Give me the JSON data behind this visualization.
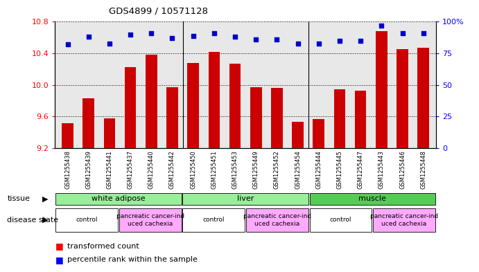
{
  "title": "GDS4899 / 10571128",
  "samples": [
    "GSM1255438",
    "GSM1255439",
    "GSM1255441",
    "GSM1255437",
    "GSM1255440",
    "GSM1255442",
    "GSM1255450",
    "GSM1255451",
    "GSM1255453",
    "GSM1255449",
    "GSM1255452",
    "GSM1255454",
    "GSM1255444",
    "GSM1255445",
    "GSM1255447",
    "GSM1255443",
    "GSM1255446",
    "GSM1255448"
  ],
  "red_values": [
    9.52,
    9.83,
    9.58,
    10.23,
    10.38,
    9.97,
    10.28,
    10.42,
    10.27,
    9.97,
    9.96,
    9.53,
    9.57,
    9.95,
    9.93,
    10.68,
    10.45,
    10.47
  ],
  "blue_values": [
    82,
    88,
    83,
    90,
    91,
    87,
    89,
    91,
    88,
    86,
    86,
    83,
    83,
    85,
    85,
    97,
    91,
    91
  ],
  "ylim_left": [
    9.2,
    10.8
  ],
  "ylim_right": [
    0,
    100
  ],
  "yticks_left": [
    9.2,
    9.6,
    10.0,
    10.4,
    10.8
  ],
  "yticks_right": [
    0,
    25,
    50,
    75,
    100
  ],
  "ytick_labels_right": [
    "0",
    "25",
    "50",
    "75",
    "100%"
  ],
  "bar_color": "#cc0000",
  "dot_color": "#0000cc",
  "tissue_data": [
    {
      "start": 0,
      "end": 6,
      "label": "white adipose",
      "color": "#99ee99"
    },
    {
      "start": 6,
      "end": 12,
      "label": "liver",
      "color": "#99ee99"
    },
    {
      "start": 12,
      "end": 18,
      "label": "muscle",
      "color": "#55cc55"
    }
  ],
  "disease_data": [
    {
      "start": 0,
      "end": 3,
      "label": "control",
      "color": "#ffffff"
    },
    {
      "start": 3,
      "end": 6,
      "label": "pancreatic cancer-ind\nuced cachexia",
      "color": "#ffaaff"
    },
    {
      "start": 6,
      "end": 9,
      "label": "control",
      "color": "#ffffff"
    },
    {
      "start": 9,
      "end": 12,
      "label": "pancreatic cancer-ind\nuced cachexia",
      "color": "#ffaaff"
    },
    {
      "start": 12,
      "end": 15,
      "label": "control",
      "color": "#ffffff"
    },
    {
      "start": 15,
      "end": 18,
      "label": "pancreatic cancer-ind\nuced cachexia",
      "color": "#ffaaff"
    }
  ],
  "tissue_separators": [
    6,
    12
  ],
  "plot_bg": "#e8e8e8"
}
